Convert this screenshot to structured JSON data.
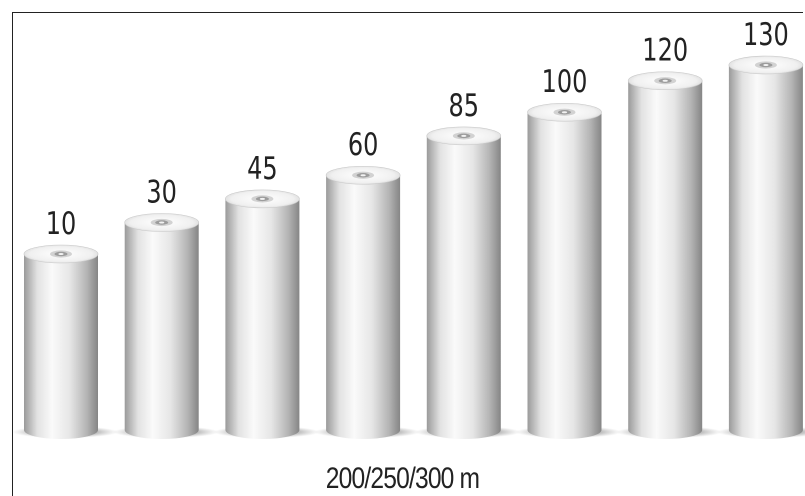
{
  "chart_data": {
    "type": "bar",
    "style": "3d-cylinder",
    "values": [
      10,
      30,
      45,
      60,
      85,
      100,
      120,
      130
    ],
    "data_labels": [
      "10",
      "30",
      "45",
      "60",
      "85",
      "100",
      "120",
      "130"
    ],
    "xlabel": "200/250/300 m",
    "title": "",
    "grid": false,
    "colors": {
      "cylinder_light": "#f4f4f4",
      "cylinder_dark": "#8a8a8a",
      "core": "#9a9a9a"
    }
  }
}
